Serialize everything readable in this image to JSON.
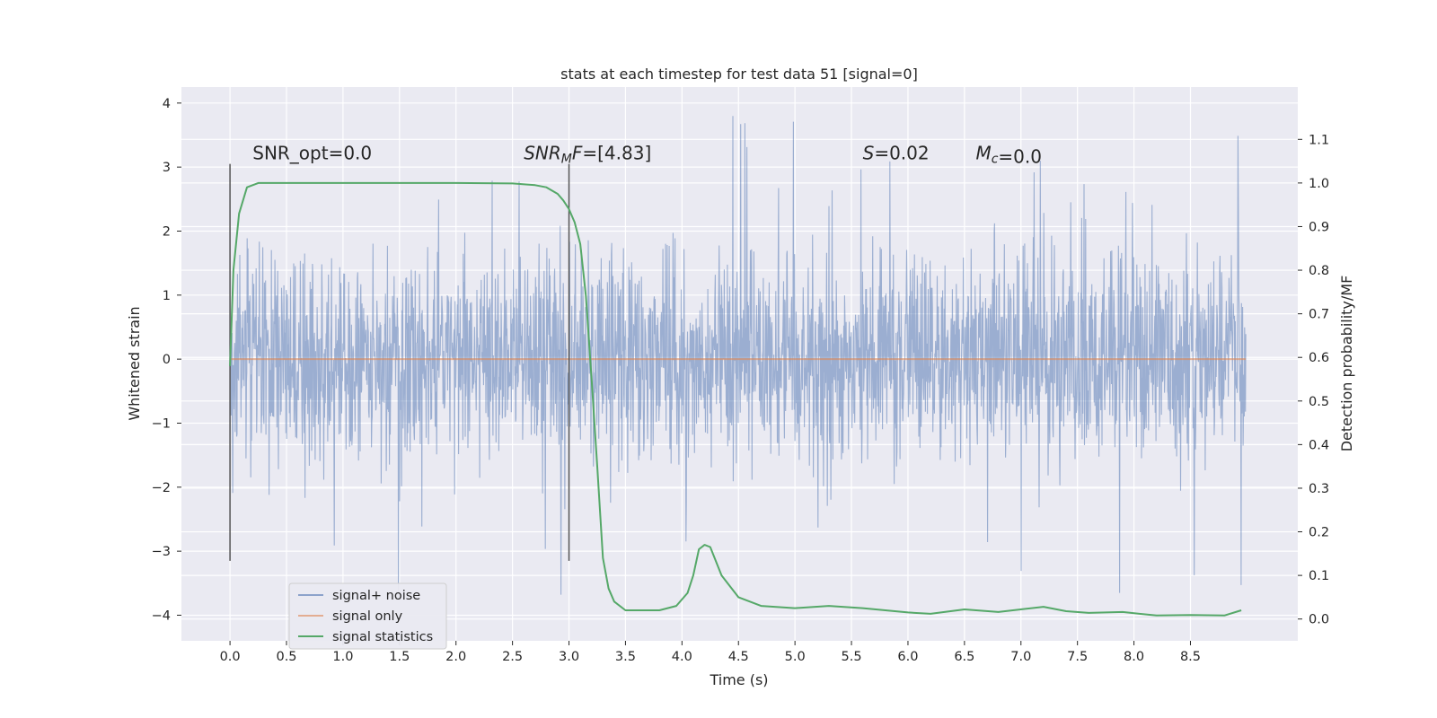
{
  "chart_data": {
    "type": "line",
    "title": "stats at each timestep for test data 51 [signal=0]",
    "xlabel": "Time (s)",
    "ylabel": "Whitened strain",
    "y2label": "Detection probability/MF",
    "xlim": [
      -0.43,
      9.45
    ],
    "ylim": [
      -4.4,
      4.25
    ],
    "y2lim": [
      -0.05,
      1.22
    ],
    "x_ticks": [
      "0.0",
      "0.5",
      "1.0",
      "1.5",
      "2.0",
      "2.5",
      "3.0",
      "3.5",
      "4.0",
      "4.5",
      "5.0",
      "5.5",
      "6.0",
      "6.5",
      "7.0",
      "7.5",
      "8.0",
      "8.5"
    ],
    "y_ticks": [
      "4",
      "3",
      "2",
      "1",
      "0",
      "−1",
      "−2",
      "−3",
      "−4"
    ],
    "y2_ticks": [
      "1.1",
      "1.0",
      "0.9",
      "0.8",
      "0.7",
      "0.6",
      "0.5",
      "0.4",
      "0.3",
      "0.2",
      "0.1",
      "0.0"
    ],
    "grid": true,
    "legend_position": "lower-left",
    "series": [
      {
        "name": "signal+ noise",
        "color": "#4c72b0",
        "x_range": [
          0.0,
          8.99
        ],
        "typical_range": [
          -1.5,
          1.5
        ],
        "peak_max": 3.9,
        "peak_min": -4.0
      },
      {
        "name": "signal only",
        "color": "#dd8452",
        "x": [
          0.0,
          8.99
        ],
        "y": [
          0.0,
          0.0
        ]
      },
      {
        "name": "signal statistics",
        "color": "#55a868",
        "axis": "right",
        "x": [
          0.0,
          0.03,
          0.08,
          0.15,
          0.25,
          0.4,
          1.0,
          2.0,
          2.5,
          2.7,
          2.8,
          2.9,
          2.95,
          3.0,
          3.05,
          3.1,
          3.15,
          3.2,
          3.25,
          3.3,
          3.35,
          3.4,
          3.5,
          3.6,
          3.8,
          3.95,
          4.05,
          4.1,
          4.15,
          4.2,
          4.25,
          4.35,
          4.5,
          4.7,
          5.0,
          5.3,
          5.6,
          6.0,
          6.2,
          6.5,
          6.8,
          7.2,
          7.4,
          7.6,
          7.9,
          8.2,
          8.5,
          8.8,
          8.95
        ],
        "y": [
          0.58,
          0.8,
          0.93,
          0.99,
          1.0,
          1.0,
          1.0,
          1.0,
          0.999,
          0.995,
          0.99,
          0.975,
          0.96,
          0.94,
          0.91,
          0.86,
          0.74,
          0.55,
          0.35,
          0.14,
          0.07,
          0.04,
          0.02,
          0.02,
          0.02,
          0.03,
          0.06,
          0.1,
          0.16,
          0.17,
          0.165,
          0.1,
          0.05,
          0.03,
          0.025,
          0.03,
          0.025,
          0.015,
          0.012,
          0.022,
          0.016,
          0.028,
          0.018,
          0.014,
          0.016,
          0.008,
          0.009,
          0.008,
          0.02
        ]
      }
    ],
    "vlines": [
      {
        "x": 0.0,
        "y": [
          -3.15,
          3.05
        ]
      },
      {
        "x": 3.0,
        "y": [
          -3.15,
          3.05
        ]
      }
    ],
    "annotations": [
      {
        "prefix": "SNR_opt",
        "value": "=0.0",
        "italic": false,
        "x": 0.2
      },
      {
        "prefix": "SNR",
        "sub": "M",
        "suffix": "F",
        "value": "=[4.83]",
        "italic": true,
        "x": 2.6
      },
      {
        "prefix": "S",
        "value": "=0.02",
        "italic": true,
        "x": 5.6
      },
      {
        "prefix": "M",
        "sub": "c",
        "value": "=0.0",
        "italic": true,
        "x": 6.6
      }
    ],
    "annotation_y": 3.05
  }
}
